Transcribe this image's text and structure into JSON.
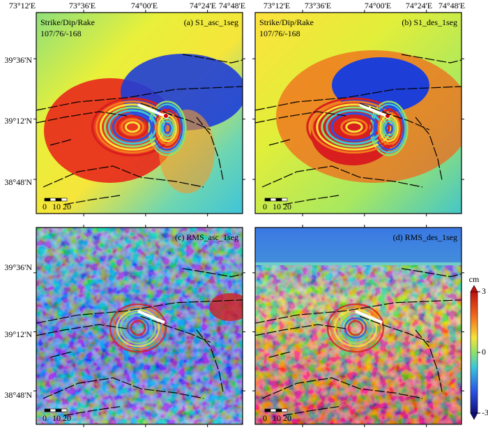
{
  "panels": [
    {
      "label": "(a) S1_asc_1seg",
      "annotation": [
        "Strike/Dip/Rake",
        "107/76/-168"
      ],
      "scale_labels": [
        "0",
        "10",
        "20"
      ]
    },
    {
      "label": "(b) S1_des_1seg",
      "annotation": [
        "Strike/Dip/Rake",
        "107/76/-168"
      ],
      "scale_labels": [
        "0",
        "10",
        "20"
      ]
    },
    {
      "label": "(c) RMS_asc_1seg",
      "scale_labels": [
        "0",
        "10",
        "20"
      ]
    },
    {
      "label": "(d) RMS_des_1seg",
      "scale_labels": [
        "0",
        "10",
        "20"
      ]
    }
  ],
  "longitude_labels": [
    "73°12'E",
    "73°36'E",
    "74°00'E",
    "74°24'E",
    "74°48'E"
  ],
  "latitude_labels": [
    "39°36'N",
    "39°12'N",
    "38°48'N"
  ],
  "colorbar": {
    "unit": "cm",
    "ticks": [
      3,
      0,
      -3
    ]
  }
}
